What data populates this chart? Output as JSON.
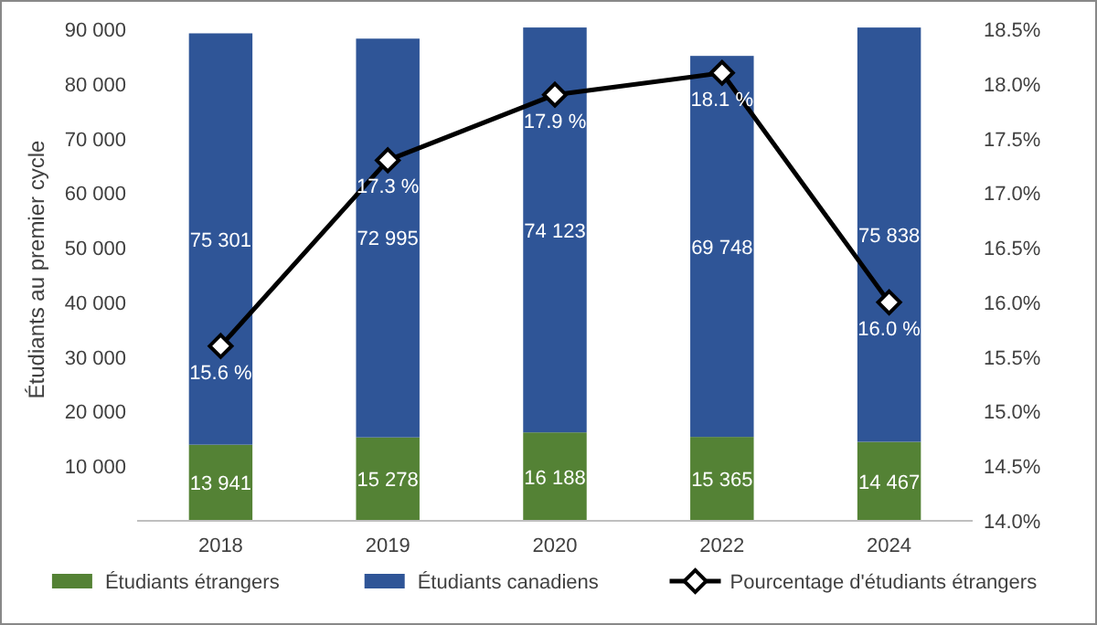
{
  "chart_data": {
    "type": "bar",
    "stacked": true,
    "ylabel": "Étudiants au premier cycle",
    "categories": [
      "2018",
      "2019",
      "2020",
      "2022",
      "2024"
    ],
    "series": [
      {
        "name": "Étudiants étrangers",
        "color": "#548235",
        "values": [
          13941,
          15278,
          16188,
          15365,
          14467
        ],
        "value_labels": [
          "13 941",
          "15 278",
          "16 188",
          "15 365",
          "14 467"
        ]
      },
      {
        "name": "Étudiants canadiens",
        "color": "#2f5597",
        "values": [
          75301,
          72995,
          74123,
          69748,
          75838
        ],
        "value_labels": [
          "75 301",
          "72 995",
          "74 123",
          "69 748",
          "75 838"
        ]
      },
      {
        "name": "Pourcentage d'étudiants étrangers",
        "type": "line",
        "axis": "y2",
        "color": "#000000",
        "marker": "diamond",
        "values": [
          15.6,
          17.3,
          17.9,
          18.1,
          16.0
        ],
        "value_labels": [
          "15.6 %",
          "17.3 %",
          "17.9 %",
          "18.1 %",
          "16.0 %"
        ]
      }
    ],
    "ylim": [
      0,
      92000
    ],
    "yticks": [
      {
        "value": 10000,
        "label": "10 000"
      },
      {
        "value": 20000,
        "label": "20 000"
      },
      {
        "value": 30000,
        "label": "30 000"
      },
      {
        "value": 40000,
        "label": "40 000"
      },
      {
        "value": 50000,
        "label": "50 000"
      },
      {
        "value": 60000,
        "label": "60 000"
      },
      {
        "value": 70000,
        "label": "70 000"
      },
      {
        "value": 80000,
        "label": "80 000"
      },
      {
        "value": 90000,
        "label": "90 000"
      }
    ],
    "y2lim": [
      14,
      18.6
    ],
    "y2ticks": [
      {
        "value": 14,
        "label": "14.0%"
      },
      {
        "value": 14.5,
        "label": "14.5%"
      },
      {
        "value": 15,
        "label": "15.0%"
      },
      {
        "value": 15.5,
        "label": "15.5%"
      },
      {
        "value": 16,
        "label": "16.0%"
      },
      {
        "value": 16.5,
        "label": "16.5%"
      },
      {
        "value": 17,
        "label": "17.0%"
      },
      {
        "value": 17.5,
        "label": "17.5%"
      },
      {
        "value": 18,
        "label": "18.0%"
      },
      {
        "value": 18.5,
        "label": "18.5%"
      }
    ],
    "legend": "bottom"
  }
}
